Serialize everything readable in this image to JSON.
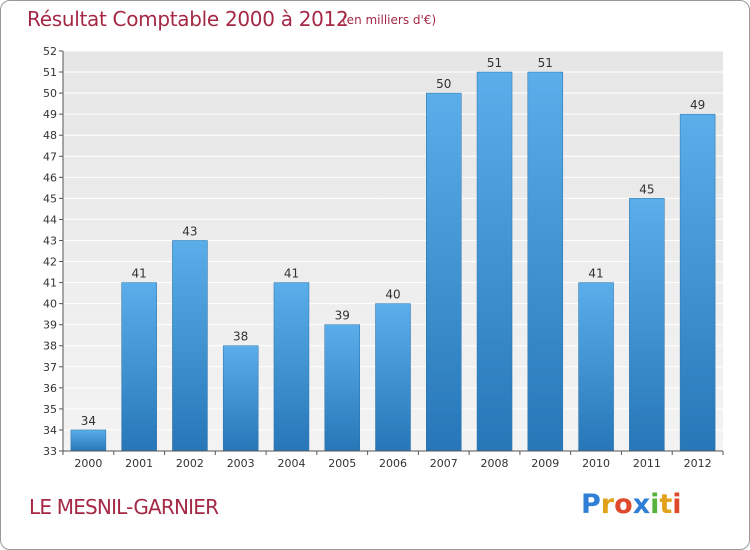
{
  "chart_data": {
    "type": "bar",
    "title": "Résultat Comptable 2000 à 2012",
    "subtitle": "(en milliers d'€)",
    "categories": [
      "2000",
      "2001",
      "2002",
      "2003",
      "2004",
      "2005",
      "2006",
      "2007",
      "2008",
      "2009",
      "2010",
      "2011",
      "2012"
    ],
    "values": [
      34,
      41,
      43,
      38,
      41,
      39,
      40,
      50,
      51,
      51,
      41,
      45,
      49
    ],
    "ylim": [
      33,
      52
    ],
    "yticks": [
      33,
      34,
      35,
      36,
      37,
      38,
      39,
      40,
      41,
      42,
      43,
      44,
      45,
      46,
      47,
      48,
      49,
      50,
      51,
      52
    ],
    "xlabel": "",
    "ylabel": "",
    "grid": true,
    "bar_color": "#3d93d6"
  },
  "footer": {
    "place": "LE MESNIL-GARNIER"
  },
  "logo": {
    "letters": [
      "P",
      "r",
      "o",
      "x",
      "i",
      "t",
      "i"
    ],
    "colors": [
      "#2f7fd6",
      "#e2a11b",
      "#e04a2c",
      "#2f7fd6",
      "#56b33c",
      "#e2a11b",
      "#e04a2c"
    ]
  }
}
